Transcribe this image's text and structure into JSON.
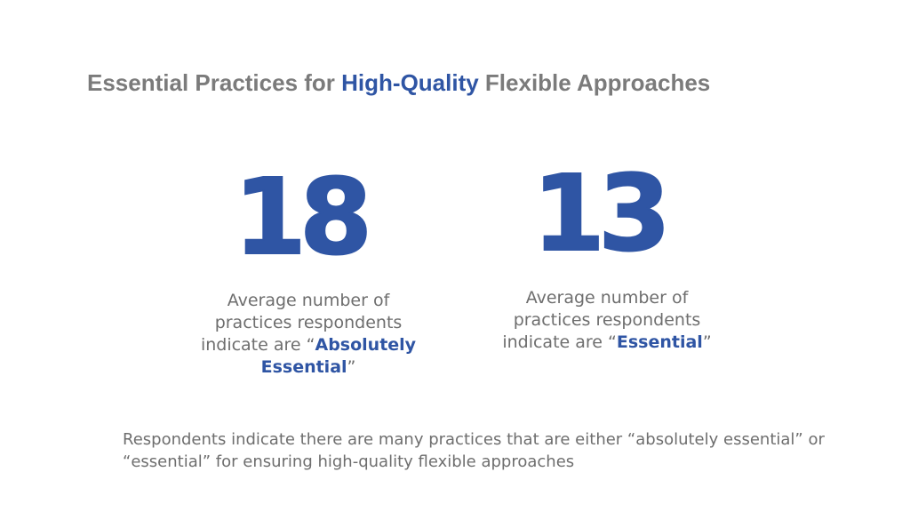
{
  "title": {
    "prefix": "Essential Practices for ",
    "highlight": "High-Quality",
    "suffix": " Flexible Approaches"
  },
  "stats": [
    {
      "value": "18",
      "description_lead": "Average number of practices respondents indicate are “",
      "emphasis": "Absolutely Essential",
      "description_tail": "”"
    },
    {
      "value": "13",
      "description_lead": "Average number of practices respondents indicate are “",
      "emphasis": "Essential",
      "description_tail": "”"
    }
  ],
  "footer": "Respondents indicate there are many practices that are either “absolutely essential” or “essential” for ensuring high-quality flexible approaches",
  "colors": {
    "accent": "#2f55a4",
    "text": "#6e6e6e",
    "title_gray": "#7b7b7b"
  }
}
